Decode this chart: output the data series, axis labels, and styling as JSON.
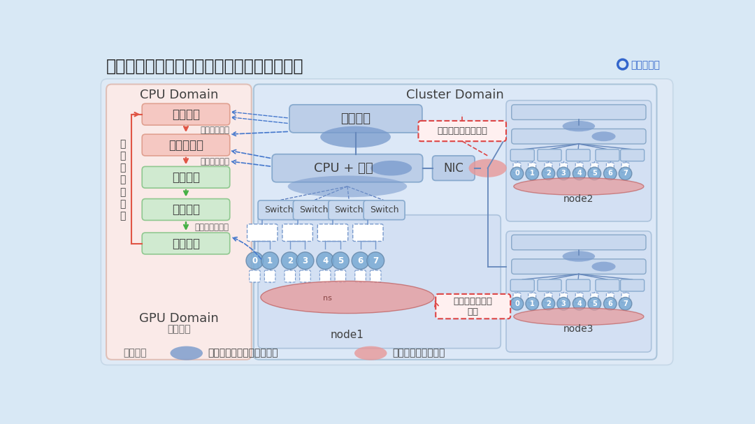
{
  "title": "以数据并行为例，理解分布式训练的性能开销",
  "bg_color": "#d8e8f5",
  "main_panel_color": "#e2edf8",
  "cpu_domain_bg": "#faeae8",
  "cluster_domain_bg": "#dce8f8",
  "cpu_box_pink": "#f5c8c2",
  "gpu_box_green": "#d0ead0",
  "cluster_box_blue": "#b8cce4",
  "node_area_blue": "#ccdaf0",
  "switch_box": "#c8d8ee",
  "connector_box": "#ffffff",
  "gpu_ellipse_blue": "#7aaad4",
  "large_blue_ellipse": "#7aaad4",
  "red_ellipse_color": "#e89898",
  "text_dark": "#404040",
  "text_mid": "#606060",
  "text_light": "#808080",
  "arrow_red": "#e05545",
  "arrow_green": "#45b045",
  "arrow_blue": "#4477cc",
  "dashed_blue": "#4477cc",
  "dashed_red": "#dd4444",
  "node_label_color": "#404040",
  "cpu_domain_label": "CPU Domain",
  "cluster_domain_label": "Cluster Domain",
  "gpu_domain_label": "GPU Domain",
  "flow_label": "训练流程",
  "box1_text": "数据读取",
  "box2_text": "数据预处理",
  "box3_text": "前向计算",
  "box4_text": "反向计算",
  "box5_text": "参数更新",
  "label_disk": "从硬盘到主存",
  "label_mem": "从内存到显存",
  "label_grad": "进程间梯度平均",
  "label_iter": "启\n动\n新\n一\n轮\n迭\n代",
  "data_storage_text": "数据存储",
  "cpu_mem_text": "CPU + 内存",
  "nic_text": "NIC",
  "switch_text": "Switch",
  "node1_text": "node1",
  "node2_text": "node2",
  "node3_text": "node3",
  "ns_text": "ns",
  "annotation1": "节点间网络通信开销",
  "annotation2": "单机内卡间通信\n开销",
  "legend1": "单机训练可能的性能瓶颈点",
  "legend2": "分布式训练额外开销",
  "legend_label": "训练流程"
}
